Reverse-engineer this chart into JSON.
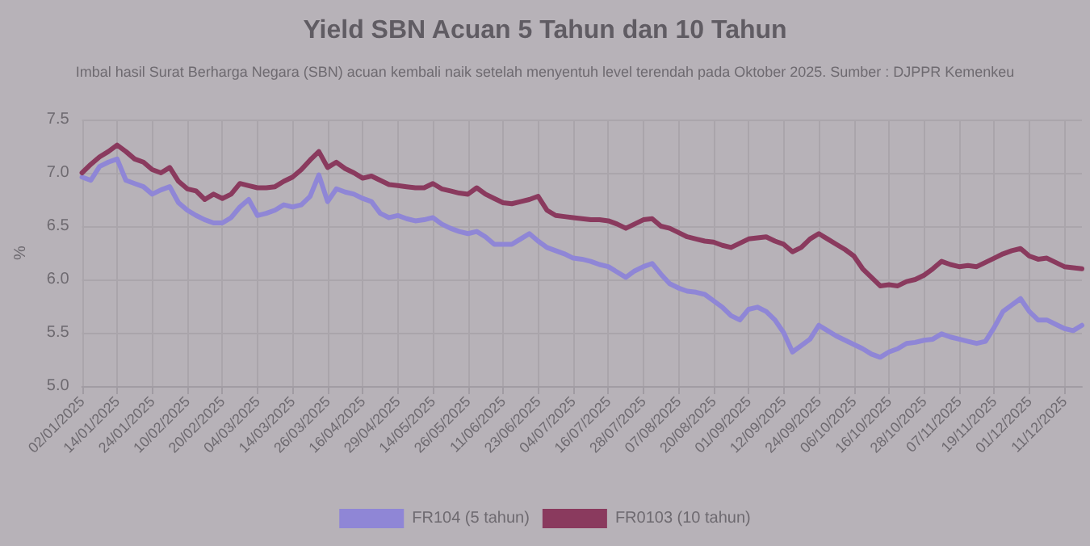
{
  "chart_data": {
    "type": "line",
    "title": "Yield SBN Acuan 5 Tahun dan 10 Tahun",
    "subtitle": "Imbal hasil Surat Berharga Negara (SBN) acuan kembali naik setelah menyentuh level terendah pada Oktober 2025. Sumber : DJPPR Kemenkeu",
    "ylabel": "%",
    "categories": [
      "02/01/2025",
      null,
      null,
      null,
      "14/01/2025",
      null,
      null,
      null,
      "24/01/2025",
      null,
      null,
      null,
      "10/02/2025",
      null,
      null,
      null,
      "20/02/2025",
      null,
      null,
      null,
      "04/03/2025",
      null,
      null,
      null,
      "14/03/2025",
      null,
      null,
      null,
      "26/03/2025",
      null,
      null,
      null,
      "16/04/2025",
      null,
      null,
      null,
      "29/04/2025",
      null,
      null,
      null,
      "14/05/2025",
      null,
      null,
      null,
      "26/05/2025",
      null,
      null,
      null,
      "11/06/2025",
      null,
      null,
      null,
      "23/06/2025",
      null,
      null,
      null,
      "04/07/2025",
      null,
      null,
      null,
      "16/07/2025",
      null,
      null,
      null,
      "28/07/2025",
      null,
      null,
      null,
      "07/08/2025",
      null,
      null,
      null,
      "20/08/2025",
      null,
      null,
      null,
      "01/09/2025",
      null,
      null,
      null,
      "12/09/2025",
      null,
      null,
      null,
      "24/09/2025",
      null,
      null,
      null,
      "06/10/2025",
      null,
      null,
      null,
      "16/10/2025",
      null,
      null,
      null,
      "28/10/2025",
      null,
      null,
      null,
      "07/11/2025",
      null,
      null,
      null,
      "19/11/2025",
      null,
      null,
      null,
      "01/12/2025",
      null,
      null,
      null,
      "11/12/2025",
      null,
      null
    ],
    "series": [
      {
        "name": "FR104 (5 tahun)",
        "color": "#8f86d6",
        "values": [
          6.96,
          6.93,
          7.06,
          7.1,
          7.13,
          6.93,
          6.9,
          6.87,
          6.8,
          6.84,
          6.87,
          6.72,
          6.65,
          6.6,
          6.56,
          6.53,
          6.53,
          6.58,
          6.68,
          6.75,
          6.6,
          6.62,
          6.65,
          6.7,
          6.68,
          6.7,
          6.78,
          6.98,
          6.73,
          6.85,
          6.82,
          6.8,
          6.76,
          6.73,
          6.62,
          6.58,
          6.6,
          6.57,
          6.55,
          6.56,
          6.58,
          6.52,
          6.48,
          6.45,
          6.43,
          6.45,
          6.4,
          6.33,
          6.33,
          6.33,
          6.38,
          6.43,
          6.36,
          6.3,
          6.27,
          6.24,
          6.2,
          6.19,
          6.17,
          6.14,
          6.12,
          6.07,
          6.02,
          6.08,
          6.12,
          6.15,
          6.05,
          5.96,
          5.92,
          5.89,
          5.88,
          5.86,
          5.8,
          5.74,
          5.66,
          5.62,
          5.72,
          5.74,
          5.7,
          5.62,
          5.5,
          5.32,
          5.38,
          5.44,
          5.57,
          5.52,
          5.47,
          5.43,
          5.39,
          5.35,
          5.3,
          5.27,
          5.32,
          5.35,
          5.4,
          5.41,
          5.43,
          5.44,
          5.49,
          5.46,
          5.44,
          5.42,
          5.4,
          5.42,
          5.55,
          5.7,
          5.76,
          5.82,
          5.7,
          5.62,
          5.62,
          5.58,
          5.54,
          5.52,
          5.57
        ]
      },
      {
        "name": "FR0103 (10 tahun)",
        "color": "#8a3a5e",
        "values": [
          7.0,
          7.08,
          7.15,
          7.2,
          7.26,
          7.2,
          7.13,
          7.1,
          7.03,
          7.0,
          7.05,
          6.92,
          6.85,
          6.83,
          6.75,
          6.8,
          6.76,
          6.8,
          6.9,
          6.88,
          6.86,
          6.86,
          6.87,
          6.92,
          6.96,
          7.03,
          7.12,
          7.2,
          7.05,
          7.1,
          7.04,
          7.0,
          6.95,
          6.97,
          6.93,
          6.89,
          6.88,
          6.87,
          6.86,
          6.86,
          6.9,
          6.85,
          6.83,
          6.81,
          6.8,
          6.86,
          6.8,
          6.76,
          6.72,
          6.71,
          6.73,
          6.75,
          6.78,
          6.65,
          6.6,
          6.59,
          6.58,
          6.57,
          6.56,
          6.56,
          6.55,
          6.52,
          6.48,
          6.52,
          6.56,
          6.57,
          6.5,
          6.48,
          6.44,
          6.4,
          6.38,
          6.36,
          6.35,
          6.32,
          6.3,
          6.34,
          6.38,
          6.39,
          6.4,
          6.36,
          6.33,
          6.26,
          6.3,
          6.38,
          6.43,
          6.38,
          6.33,
          6.28,
          6.22,
          6.1,
          6.02,
          5.94,
          5.95,
          5.94,
          5.98,
          6.0,
          6.04,
          6.1,
          6.17,
          6.14,
          6.12,
          6.13,
          6.12,
          6.16,
          6.2,
          6.24,
          6.27,
          6.29,
          6.22,
          6.19,
          6.2,
          6.16,
          6.12,
          6.11,
          6.1
        ]
      }
    ],
    "ylim": [
      5,
      7.5
    ],
    "yticks": [
      {
        "value": 5,
        "label": "5.0"
      },
      {
        "value": 5.5,
        "label": "5.5"
      },
      {
        "value": 6,
        "label": "6.0"
      },
      {
        "value": 6.5,
        "label": "6.5"
      },
      {
        "value": 7,
        "label": "7.0"
      },
      {
        "value": 7.5,
        "label": "7.5"
      }
    ],
    "grid": true,
    "legend": "bottom",
    "marker": "none",
    "line_style": "solid"
  }
}
